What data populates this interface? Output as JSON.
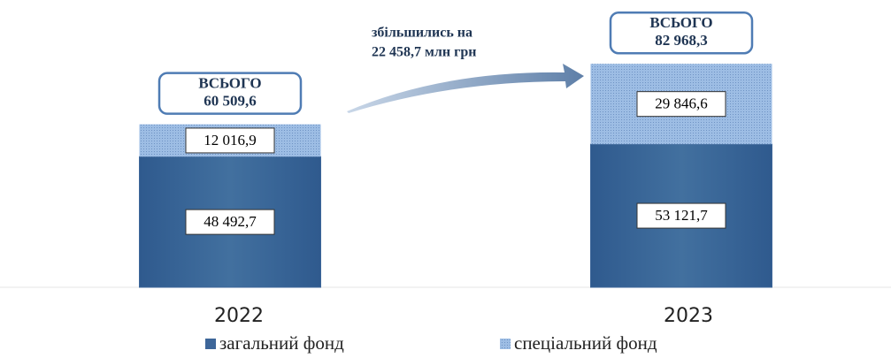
{
  "chart_data": {
    "type": "stacked-bar",
    "categories": [
      "2022",
      "2023"
    ],
    "series": [
      {
        "name": "загальний фонд",
        "color": "#3d6699",
        "values": [
          48492.7,
          53121.7
        ],
        "value_labels": [
          "48 492,7",
          "53 121,7"
        ]
      },
      {
        "name": "спеціальний фонд",
        "color": "#8fb2de",
        "values": [
          12016.9,
          29846.6
        ],
        "value_labels": [
          "12 016,9",
          "29 846,6"
        ]
      }
    ],
    "totals": {
      "label": "ВСЬОГО",
      "values": [
        60509.6,
        82968.3
      ],
      "value_labels": [
        "60 509,6",
        "82 968,3"
      ]
    },
    "annotation": [
      "збільшились на",
      "22 458,7  млн грн"
    ],
    "ylim": [
      0,
      85000
    ]
  }
}
